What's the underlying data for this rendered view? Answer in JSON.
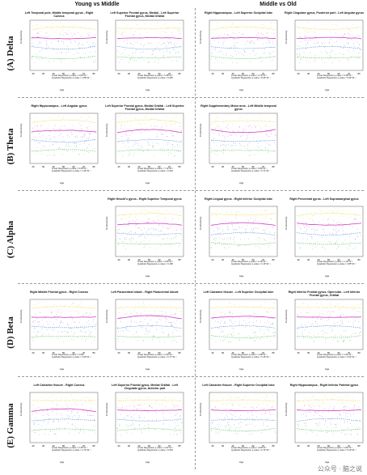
{
  "headers": {
    "young_vs_middle": "Young vs Middle",
    "middle_vs_old": "Middle vs Old"
  },
  "rows": [
    {
      "label": "(A) Delta",
      "panels": [
        {
          "title": "Left Temporal pole, Middle temporal gyrus - Right Cuneus",
          "linear": "Linear Regression p-value = 2.81*10⁻¹",
          "quad": "Quadratic Regression p-value = 1.88*10⁻¹"
        },
        {
          "title": "Left Superior Frontal gyrus, Medial - Left Superior Frontal gyrus, Medial Orbital",
          "linear": "Linear Regression p-value = 1.98*10⁻¹",
          "quad": "Quadratic Regression p-value = 0.096"
        },
        {
          "title": "Right Hippocampus - Left Superior Occipital lobe",
          "linear": "Linear Regression p-value = 4.72*10⁻¹",
          "quad": "Quadratic Regression p-value = 8.44*10⁻¹"
        },
        {
          "title": "Right Cingulate gyrus, Posterior part - Left Angular gyrus",
          "linear": "Linear Regression p-value = 5.18*10⁻¹",
          "quad": "Quadratic Regression p-value = 5.90*10⁻¹"
        }
      ]
    },
    {
      "label": "(B) Theta",
      "panels": [
        {
          "title": "Right Hippocampus - Left Angular gyrus",
          "linear": "Linear Regression p-value = 6.36*10⁻¹",
          "quad": "Quadratic Regression p-value = 1.36*10⁻¹"
        },
        {
          "title": "Left Superior Frontal gyrus, Medial Orbital - Left Superior Frontal gyrus, Medial Orbital",
          "linear": "Linear Regression p-value = 7.12*10⁻¹",
          "quad": "Quadratic Regression p-value = 0.402"
        },
        {
          "title": "Right Supplementary Motor area - Left Middle temporal gyrus",
          "linear": "Linear Regression p-value = 6.82*10⁻¹",
          "quad": "Quadratic Regression p-value = 5.71*10⁻¹"
        }
      ]
    },
    {
      "label": "(C) Alpha",
      "panels": [
        {
          "title": "Right Heschl's gyrus - Right Superior Temporal gyrus",
          "linear": "Linear Regression p-value = 4.06*10⁻¹",
          "quad": "Quadratic Regression p-value = 0.158"
        },
        {
          "title": "Right Lingual gyrus - Right Inferior Occipital lobe",
          "linear": "Linear Regression p-value = 2.16*10⁻¹",
          "quad": "Quadratic Regression p-value = 3.16*10⁻¹"
        },
        {
          "title": "Right Precentral gyrus - Left Supramarginal gyrus",
          "linear": "Linear Regression p-value = 1.12*10⁻¹",
          "quad": "Quadratic Regression p-value = 4.85*10⁻¹"
        }
      ]
    },
    {
      "label": "(D) Beta",
      "panels": [
        {
          "title": "Right Middle Frontal gyrus - Right Cuneus",
          "linear": "Linear Regression p-value = 0.048",
          "quad": "Quadratic Regression p-value = 4.90*10⁻¹"
        },
        {
          "title": "Left Paracentral lobule - Right Paracentral lobule",
          "linear": "Linear Regression p-value = 1.60*10⁻¹",
          "quad": "Quadratic Regression p-value = 6.77*10⁻¹"
        },
        {
          "title": "Left Calcarine fissure - Left Superior Occipital lobe",
          "linear": "Linear Regression p-value = 1.98*10⁻¹",
          "quad": "Quadratic Regression p-value = 5.16*10⁻¹"
        },
        {
          "title": "Right Inferior Frontal gyrus, Opercular - Left Inferior Frontal gyrus, Orbital",
          "linear": "Linear Regression p-value = 1.91*10⁻¹",
          "quad": "Quadratic Regression p-value = 6.52*10⁻¹"
        }
      ]
    },
    {
      "label": "(E) Gamma",
      "panels": [
        {
          "title": "Left Calcarine fissure - Right Cuneus",
          "linear": "Linear Regression p-value = 2.36*10⁻¹",
          "quad": "Quadratic Regression p-value = 1.73*10⁻¹"
        },
        {
          "title": "Left Superior Frontal gyrus, Medial Orbital - Left Cingulate gyrus, Anterior part",
          "linear": "Linear Regression p-value = 4.31*10⁻¹",
          "quad": "Quadratic Regression p-value = 0.053"
        },
        {
          "title": "Left Calcarine fissure - Right Superior Occipital lobe",
          "linear": "Linear Regression p-value = 4.09*10⁻¹",
          "quad": "Quadratic Regression p-value = 6.72*10⁻¹"
        },
        {
          "title": "Right Hippocampus - Right Inferior Parietal gyrus",
          "linear": "Linear Regression p-value = 1.84*10⁻¹",
          "quad": "Quadratic Regression p-value = 8.10*10⁻¹"
        }
      ]
    }
  ],
  "axis": {
    "xlabel": "Age",
    "ylabel": "Connectivity",
    "xticks": [
      "20",
      "30",
      "40",
      "50",
      "60",
      "70",
      "80"
    ]
  },
  "colors": {
    "magenta": "#d455c8",
    "blue": "#5b8fd6",
    "green": "#5fbf6a",
    "yellow": "#e8d84a",
    "points": "#aaaaaa"
  },
  "watermark": "公众号 · 脑之说",
  "chart_data": {
    "type": "scatter",
    "xlabel": "Age",
    "ylabel": "Connectivity",
    "xlim": [
      20,
      80
    ],
    "series": [
      {
        "name": "",
        "values": [
          0.3,
          0.32,
          0.31,
          0.33,
          0.32,
          0.3,
          0.31
        ]
      },
      {
        "name": "",
        "values": [
          0.2,
          0.19,
          0.2,
          0.21,
          0.2,
          0.19,
          0.2
        ]
      },
      {
        "name": "",
        "values": [
          0.1,
          0.11,
          0.1,
          0.12,
          0.11,
          0.1,
          0.11
        ]
      },
      {
        "name": "",
        "values": [
          0.4,
          0.42,
          0.41,
          0.43,
          0.41,
          0.4,
          0.42
        ]
      }
    ],
    "x": [
      20,
      30,
      40,
      50,
      60,
      70,
      80
    ]
  }
}
